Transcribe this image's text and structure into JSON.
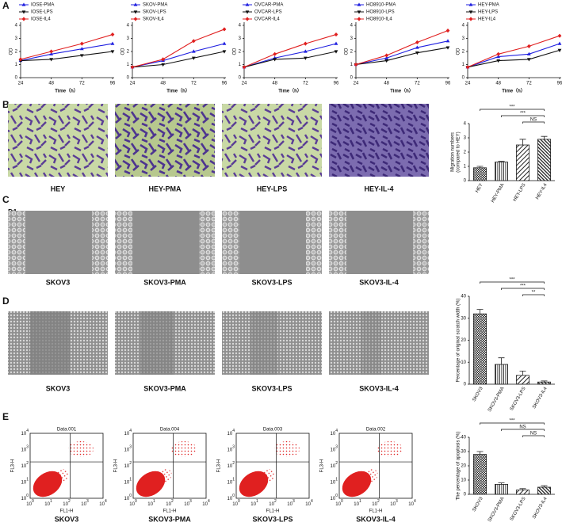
{
  "panel_labels": [
    "A",
    "B",
    "C",
    "D",
    "E"
  ],
  "sub_labels": [
    "D1",
    "D2"
  ],
  "chart_data": [
    {
      "type": "line",
      "x": [
        24,
        48,
        72,
        96
      ],
      "xlim": [
        24,
        96
      ],
      "xticks": [
        24,
        48,
        72,
        96
      ],
      "ylim": [
        0,
        4
      ],
      "yticks": [
        0,
        1,
        2,
        3,
        4
      ],
      "ylabel": "OD",
      "xlabel": "Time（h）",
      "series": [
        {
          "name": "IOSE-PMA",
          "color": "#1f1fe0",
          "values": [
            1.3,
            1.8,
            2.2,
            2.6
          ]
        },
        {
          "name": "IOSE-LPS",
          "color": "#111111",
          "values": [
            1.3,
            1.4,
            1.7,
            2.0
          ]
        },
        {
          "name": "IOSE-IL4",
          "color": "#e01f1f",
          "values": [
            1.4,
            2.0,
            2.6,
            3.3
          ]
        }
      ]
    },
    {
      "type": "line",
      "x": [
        24,
        48,
        72,
        96
      ],
      "xlim": [
        24,
        96
      ],
      "xticks": [
        24,
        48,
        72,
        96
      ],
      "ylim": [
        0,
        4
      ],
      "yticks": [
        0,
        1,
        2,
        3,
        4
      ],
      "ylabel": "OD",
      "xlabel": "Time（h）",
      "series": [
        {
          "name": "SKOV-PMA",
          "color": "#1f1fe0",
          "values": [
            0.8,
            1.3,
            2.0,
            2.6
          ]
        },
        {
          "name": "SKOV-LPS",
          "color": "#111111",
          "values": [
            0.8,
            1.0,
            1.5,
            2.0
          ]
        },
        {
          "name": "SKOV-IL4",
          "color": "#e01f1f",
          "values": [
            0.8,
            1.4,
            2.8,
            3.7
          ]
        }
      ]
    },
    {
      "type": "line",
      "x": [
        24,
        48,
        72,
        96
      ],
      "xlim": [
        24,
        96
      ],
      "xticks": [
        24,
        48,
        72,
        96
      ],
      "ylim": [
        0,
        4
      ],
      "yticks": [
        0,
        1,
        2,
        3,
        4
      ],
      "ylabel": "OD",
      "xlabel": "Time（h）",
      "series": [
        {
          "name": "OVCAR-PMA",
          "color": "#1f1fe0",
          "values": [
            0.8,
            1.5,
            2.0,
            2.6
          ]
        },
        {
          "name": "OVCAR-LPS",
          "color": "#111111",
          "values": [
            0.8,
            1.4,
            1.5,
            2.0
          ]
        },
        {
          "name": "OVCAR-IL4",
          "color": "#e01f1f",
          "values": [
            0.8,
            1.8,
            2.6,
            3.3
          ]
        }
      ]
    },
    {
      "type": "line",
      "x": [
        24,
        48,
        72,
        96
      ],
      "xlim": [
        24,
        96
      ],
      "xticks": [
        24,
        48,
        72,
        96
      ],
      "ylim": [
        0,
        4
      ],
      "yticks": [
        0,
        1,
        2,
        3,
        4
      ],
      "ylabel": "OD",
      "xlabel": "Time（h）",
      "series": [
        {
          "name": "HO8910-PMA",
          "color": "#1f1fe0",
          "values": [
            1.0,
            1.5,
            2.3,
            2.8
          ]
        },
        {
          "name": "HO8910-LPS",
          "color": "#111111",
          "values": [
            1.0,
            1.3,
            1.9,
            2.3
          ]
        },
        {
          "name": "HO8910-IL4",
          "color": "#e01f1f",
          "values": [
            1.0,
            1.7,
            2.7,
            3.6
          ]
        }
      ]
    },
    {
      "type": "line",
      "x": [
        24,
        48,
        72,
        96
      ],
      "xlim": [
        24,
        96
      ],
      "xticks": [
        24,
        48,
        72,
        96
      ],
      "ylim": [
        0,
        4
      ],
      "yticks": [
        0,
        1,
        2,
        3,
        4
      ],
      "ylabel": "OD",
      "xlabel": "Time（h）",
      "series": [
        {
          "name": "HEY-PMA",
          "color": "#1f1fe0",
          "values": [
            0.8,
            1.6,
            1.8,
            2.6
          ]
        },
        {
          "name": "HEY-LPS",
          "color": "#111111",
          "values": [
            0.8,
            1.3,
            1.4,
            2.1
          ]
        },
        {
          "name": "HEY-IL4",
          "color": "#e01f1f",
          "values": [
            0.8,
            1.8,
            2.4,
            3.2
          ]
        }
      ]
    },
    {
      "type": "bar",
      "categories": [
        "HEY",
        "HEY-PMA",
        "HEY-LPS",
        "HEY-IL4"
      ],
      "values": [
        0.9,
        1.3,
        2.5,
        2.9
      ],
      "errors": [
        0.1,
        0.05,
        0.4,
        0.2
      ],
      "ylim": [
        0,
        4
      ],
      "yticks": [
        0,
        1,
        2,
        3,
        4
      ],
      "ylabel": [
        "Migration numbers",
        "(compared to HEY)"
      ],
      "annotations": [
        "***",
        "***",
        "NS"
      ],
      "color": "#222222"
    },
    {
      "type": "bar",
      "categories": [
        "SKOV3",
        "SKOV3-PMA",
        "SKOV3-LPS",
        "SKOV3-IL4"
      ],
      "values": [
        32,
        9,
        4,
        1
      ],
      "errors": [
        2,
        3,
        2,
        0.5
      ],
      "ylim": [
        0,
        40
      ],
      "yticks": [
        0,
        10,
        20,
        30,
        40
      ],
      "ylabel": [
        "Percentage of original scratch width (%)"
      ],
      "annotations": [
        "***",
        "***",
        "**"
      ],
      "color": "#222222"
    },
    {
      "type": "bar",
      "categories": [
        "SKOV3",
        "SKOV3-PMA",
        "SKOV3-LPS",
        "SKOV3-IL4"
      ],
      "values": [
        28,
        7,
        3,
        5
      ],
      "errors": [
        2,
        1,
        1,
        1
      ],
      "ylim": [
        0,
        40
      ],
      "yticks": [
        0,
        10,
        20,
        30,
        40
      ],
      "ylabel": [
        "The percentage of apoptosis (%)"
      ],
      "annotations": [
        "***",
        "NS",
        "NS"
      ],
      "color": "#222222"
    }
  ],
  "images": {
    "migration": [
      "HEY",
      "HEY-PMA",
      "HEY-LPS",
      "HEY-IL-4"
    ],
    "scratch_d1": [
      "SKOV3",
      "SKOV3-PMA",
      "SKOV3-LPS",
      "SKOV3-IL-4"
    ],
    "scratch_d2": [
      "SKOV3",
      "SKOV3-PMA",
      "SKOV3-LPS",
      "SKOV3-IL-4"
    ]
  },
  "flow": {
    "titles": [
      "Data.001",
      "Data.004",
      "Data.003",
      "Data.002"
    ],
    "captions": [
      "SKOV3",
      "SKOV3-PMA",
      "SKOV3-LPS",
      "SKOV3-IL-4"
    ],
    "x_label": "FL1-H",
    "y_label": "FL3-H",
    "ticks": [
      {
        "base": "10",
        "exp": "0"
      },
      {
        "base": "10",
        "exp": "1"
      },
      {
        "base": "10",
        "exp": "2"
      },
      {
        "base": "10",
        "exp": "3"
      },
      {
        "base": "10",
        "exp": "4"
      }
    ]
  }
}
